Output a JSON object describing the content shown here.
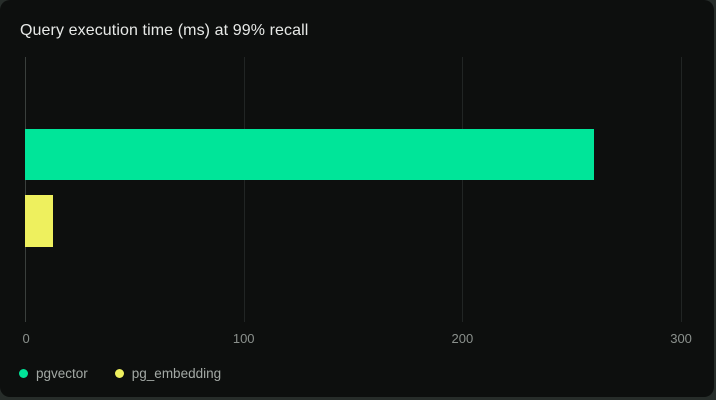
{
  "chart_data": {
    "type": "bar",
    "orientation": "horizontal",
    "title": "Query execution time (ms) at 99% recall",
    "categories": [
      "pgvector",
      "pg_embedding"
    ],
    "series": [
      {
        "name": "pgvector",
        "value": 260,
        "color": "#00e599"
      },
      {
        "name": "pg_embedding",
        "value": 13,
        "color": "#eef05e"
      }
    ],
    "xlabel": "",
    "ylabel": "",
    "xticks": [
      0,
      100,
      200,
      300
    ],
    "xlim": [
      0,
      305
    ],
    "grid": true,
    "legend_position": "bottom-left",
    "background": "#0d0f0e",
    "outer_background": "#272d2a",
    "gridline_color": "#212524",
    "axis_line_color": "#3a3f3c",
    "tick_text_color": "#8a908c",
    "legend_text_color": "#a3a9a5",
    "title_color": "#e7e9e7"
  }
}
